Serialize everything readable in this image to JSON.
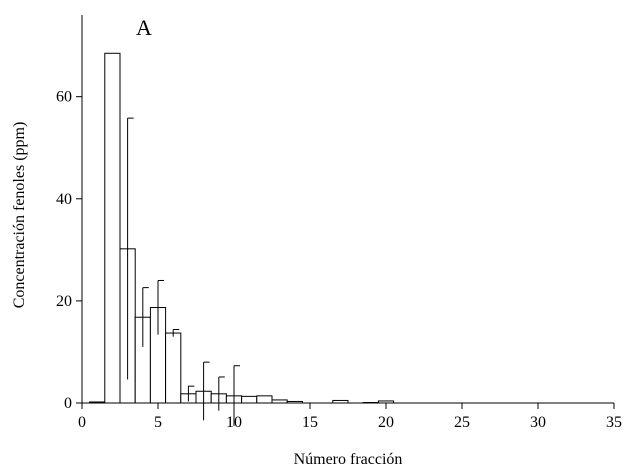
{
  "chart_data": {
    "type": "bar",
    "annotation": "A",
    "x_label": "Número fracción",
    "y_label": "Concentración fenoles (ppm)",
    "x": [
      1,
      2,
      3,
      4,
      5,
      6,
      7,
      8,
      9,
      10,
      11,
      12,
      13,
      14,
      15,
      16,
      17,
      18,
      19,
      20
    ],
    "values": [
      0.2,
      68.5,
      30.2,
      16.8,
      18.7,
      13.7,
      1.8,
      2.3,
      1.8,
      1.4,
      1.3,
      1.4,
      0.6,
      0.3,
      0,
      0,
      0.5,
      0,
      0.1,
      0.4
    ],
    "errors": [
      null,
      null,
      25.6,
      5.8,
      5.3,
      0.7,
      1.5,
      5.7,
      3.3,
      5.9,
      null,
      null,
      null,
      null,
      null,
      null,
      null,
      null,
      null,
      null
    ],
    "color": "#ffffff",
    "xlim": [
      0,
      35
    ],
    "xticks": [
      0,
      5,
      10,
      15,
      20,
      25,
      30,
      35
    ],
    "ylim": [
      0,
      76
    ],
    "yticks": [
      0,
      20,
      40,
      60
    ]
  }
}
